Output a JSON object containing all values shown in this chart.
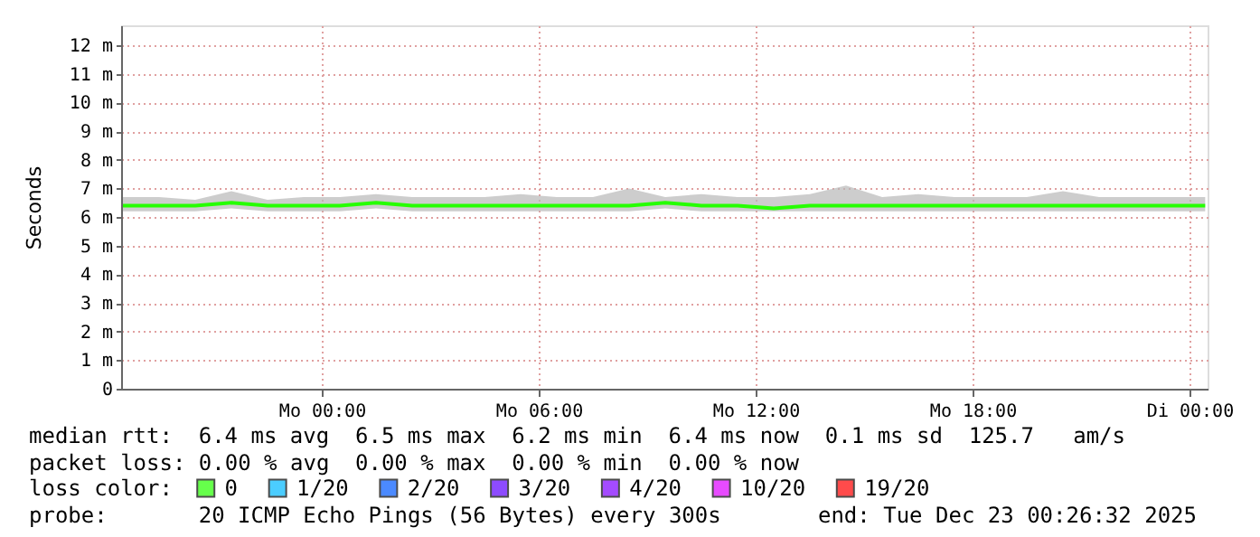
{
  "chart_data": {
    "type": "line",
    "ylabel": "Seconds",
    "legend_title": "loss color:",
    "legend": "bottom",
    "grid": true,
    "marker": "none",
    "line_style": "solid",
    "xlim": [
      "2025-12-21T18:27",
      "2025-12-23T00:30"
    ],
    "xticks": [
      {
        "value": "2025-12-22T00:00",
        "label": "Mo 00:00"
      },
      {
        "value": "2025-12-22T06:00",
        "label": "Mo 06:00"
      },
      {
        "value": "2025-12-22T12:00",
        "label": "Mo 12:00"
      },
      {
        "value": "2025-12-22T18:00",
        "label": "Mo 18:00"
      },
      {
        "value": "2025-12-23T00:00",
        "label": "Di 00:00"
      }
    ],
    "ylim": [
      0,
      12.7
    ],
    "yticks": [
      0,
      {
        "value": 1,
        "label": "1 m"
      },
      {
        "value": 2,
        "label": "2 m"
      },
      {
        "value": 3,
        "label": "3 m"
      },
      {
        "value": 4,
        "label": "4 m"
      },
      {
        "value": 5,
        "label": "5 m"
      },
      {
        "value": 6,
        "label": "6 m"
      },
      {
        "value": 7,
        "label": "7 m"
      },
      {
        "value": 8,
        "label": "8 m"
      },
      {
        "value": 9,
        "label": "9 m"
      },
      {
        "value": 10,
        "label": "10 m"
      },
      {
        "value": 11,
        "label": "11 m"
      },
      {
        "value": 12,
        "label": "12 m"
      }
    ],
    "x": [
      "2025-12-21T18:30",
      "2025-12-21T19:30",
      "2025-12-21T20:30",
      "2025-12-21T21:30",
      "2025-12-21T22:30",
      "2025-12-21T23:30",
      "2025-12-22T00:30",
      "2025-12-22T01:30",
      "2025-12-22T02:30",
      "2025-12-22T03:30",
      "2025-12-22T04:30",
      "2025-12-22T05:30",
      "2025-12-22T06:30",
      "2025-12-22T07:30",
      "2025-12-22T08:30",
      "2025-12-22T09:30",
      "2025-12-22T10:30",
      "2025-12-22T11:30",
      "2025-12-22T12:30",
      "2025-12-22T13:30",
      "2025-12-22T14:30",
      "2025-12-22T15:30",
      "2025-12-22T16:30",
      "2025-12-22T17:30",
      "2025-12-22T18:30",
      "2025-12-22T19:30",
      "2025-12-22T20:30",
      "2025-12-22T21:30",
      "2025-12-22T22:30",
      "2025-12-22T23:30",
      "2025-12-23T00:26"
    ],
    "series": [
      {
        "name": "0",
        "color": "#26ff00",
        "values": [
          6.4,
          6.4,
          6.4,
          6.5,
          6.4,
          6.4,
          6.4,
          6.5,
          6.4,
          6.4,
          6.4,
          6.4,
          6.4,
          6.4,
          6.4,
          6.5,
          6.4,
          6.4,
          6.3,
          6.4,
          6.4,
          6.4,
          6.4,
          6.4,
          6.4,
          6.4,
          6.4,
          6.4,
          6.4,
          6.4,
          6.4
        ],
        "lower": [
          6.2,
          6.2,
          6.2,
          6.3,
          6.2,
          6.2,
          6.2,
          6.3,
          6.2,
          6.2,
          6.2,
          6.2,
          6.2,
          6.2,
          6.2,
          6.3,
          6.2,
          6.2,
          6.2,
          6.2,
          6.2,
          6.2,
          6.2,
          6.2,
          6.2,
          6.2,
          6.2,
          6.2,
          6.2,
          6.2,
          6.2
        ],
        "upper": [
          6.7,
          6.7,
          6.6,
          6.9,
          6.6,
          6.7,
          6.7,
          6.8,
          6.7,
          6.7,
          6.7,
          6.8,
          6.7,
          6.7,
          7.0,
          6.7,
          6.8,
          6.7,
          6.7,
          6.8,
          7.1,
          6.7,
          6.8,
          6.7,
          6.7,
          6.7,
          6.9,
          6.7,
          6.7,
          6.7,
          6.7
        ]
      },
      {
        "name": "1/20",
        "color": "#00b8ff",
        "values": [
          null,
          null,
          null,
          null,
          null,
          null,
          null,
          null,
          null,
          null,
          null,
          null,
          null,
          null,
          null,
          null,
          null,
          null,
          null,
          null,
          null,
          null,
          null,
          null,
          null,
          null,
          null,
          null,
          null,
          null,
          null
        ]
      },
      {
        "name": "2/20",
        "color": "#0059ff",
        "values": [
          null,
          null,
          null,
          null,
          null,
          null,
          null,
          null,
          null,
          null,
          null,
          null,
          null,
          null,
          null,
          null,
          null,
          null,
          null,
          null,
          null,
          null,
          null,
          null,
          null,
          null,
          null,
          null,
          null,
          null,
          null
        ]
      },
      {
        "name": "3/20",
        "color": "#5e00ff",
        "values": [
          null,
          null,
          null,
          null,
          null,
          null,
          null,
          null,
          null,
          null,
          null,
          null,
          null,
          null,
          null,
          null,
          null,
          null,
          null,
          null,
          null,
          null,
          null,
          null,
          null,
          null,
          null,
          null,
          null,
          null,
          null
        ]
      },
      {
        "name": "4/20",
        "color": "#7e00ff",
        "values": [
          null,
          null,
          null,
          null,
          null,
          null,
          null,
          null,
          null,
          null,
          null,
          null,
          null,
          null,
          null,
          null,
          null,
          null,
          null,
          null,
          null,
          null,
          null,
          null,
          null,
          null,
          null,
          null,
          null,
          null,
          null
        ]
      },
      {
        "name": "10/20",
        "color": "#dd00ff",
        "values": [
          null,
          null,
          null,
          null,
          null,
          null,
          null,
          null,
          null,
          null,
          null,
          null,
          null,
          null,
          null,
          null,
          null,
          null,
          null,
          null,
          null,
          null,
          null,
          null,
          null,
          null,
          null,
          null,
          null,
          null,
          null
        ]
      },
      {
        "name": "19/20",
        "color": "#ff0000",
        "values": [
          null,
          null,
          null,
          null,
          null,
          null,
          null,
          null,
          null,
          null,
          null,
          null,
          null,
          null,
          null,
          null,
          null,
          null,
          null,
          null,
          null,
          null,
          null,
          null,
          null,
          null,
          null,
          null,
          null,
          null,
          null
        ]
      }
    ],
    "annotations": [
      "median rtt:  6.4 ms avg  6.5 ms max  6.2 ms min  6.4 ms now  0.1 ms sd  125.7   am/s",
      "packet loss: 0.00 % avg  0.00 % max  0.00 % min  0.00 % now",
      "probe:       20 ICMP Echo Pings (56 Bytes) every 300s",
      "end: Tue Dec 23 00:26:32 2025"
    ]
  }
}
